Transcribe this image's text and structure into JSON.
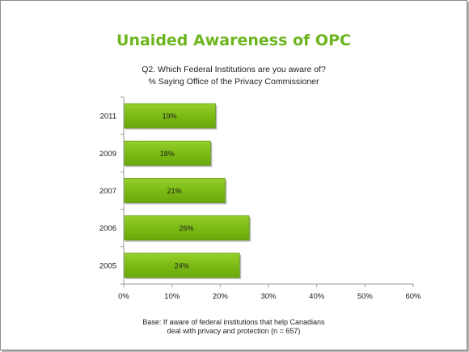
{
  "chart_data": {
    "type": "bar",
    "orientation": "horizontal",
    "title": "Unaided Awareness of OPC",
    "subtitle_lines": [
      "Q2. Which Federal Institutions are you aware of?",
      "% Saying Office of the Privacy Commissioner"
    ],
    "categories": [
      "2011",
      "2009",
      "2007",
      "2006",
      "2005"
    ],
    "values": [
      19,
      18,
      21,
      26,
      24
    ],
    "data_labels": [
      "19%",
      "18%",
      "21%",
      "26%",
      "24%"
    ],
    "xlim": [
      0,
      60
    ],
    "x_ticks": [
      "0%",
      "10%",
      "20%",
      "30%",
      "40%",
      "50%",
      "60%"
    ],
    "grid": false,
    "bar_color": "#7cbb15",
    "bar_edge_color": "#5e9a0b",
    "title_color": "#6cb51e"
  },
  "footnote_lines": [
    "Base: If aware of federal institutions that help Canadians",
    "deal with privacy and protection (n = 657)"
  ]
}
